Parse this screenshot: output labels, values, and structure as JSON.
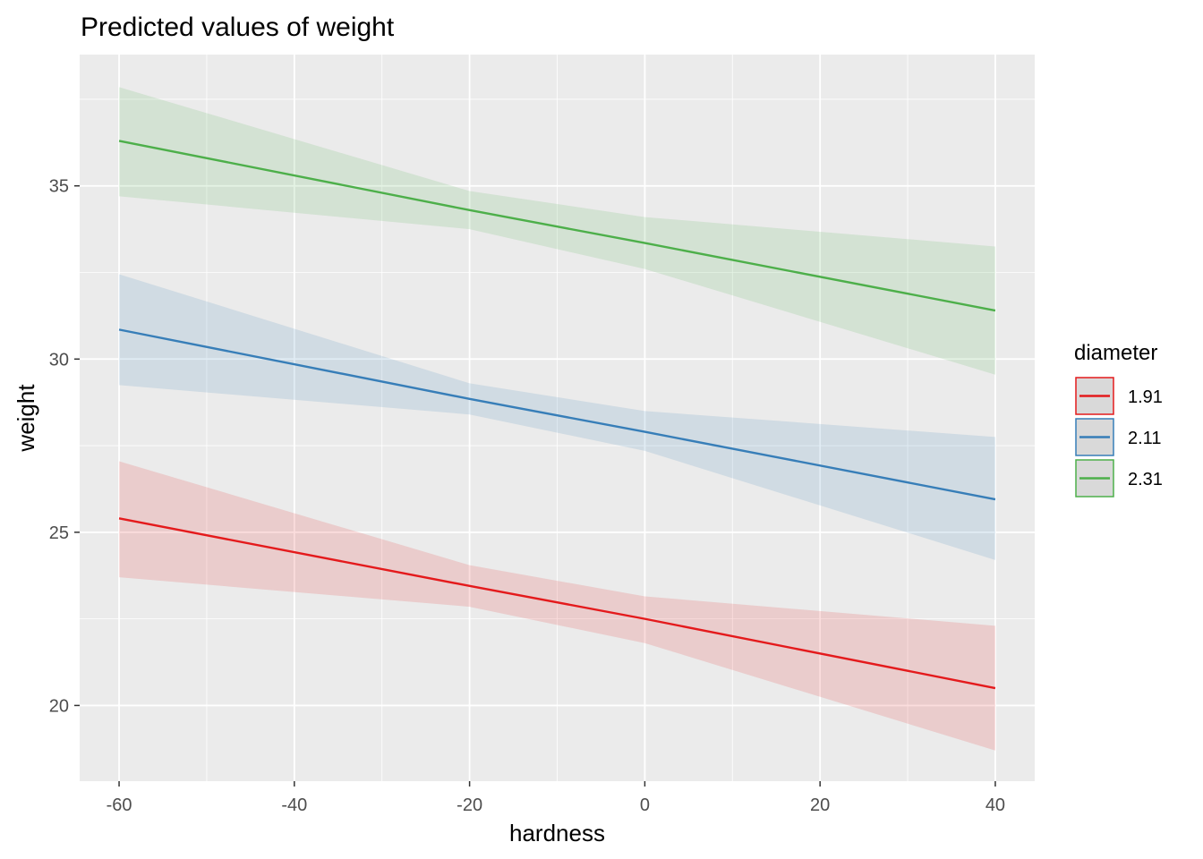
{
  "chart_data": {
    "type": "line",
    "title": "Predicted values of weight",
    "xlabel": "hardness",
    "ylabel": "weight",
    "xlim": [
      -64.5,
      44.5
    ],
    "ylim": [
      17.815,
      38.79
    ],
    "x_ticks": [
      -60,
      -40,
      -20,
      0,
      20,
      40
    ],
    "y_ticks": [
      20,
      25,
      30,
      35
    ],
    "grid": true,
    "background": "#ebebeb",
    "legend": {
      "title": "diameter",
      "position": "right"
    },
    "x": [
      -60,
      -20,
      0,
      40
    ],
    "series": [
      {
        "name": "1.91",
        "color": "#e41a1c",
        "values": [
          25.4,
          23.45,
          22.5,
          20.5
        ],
        "ci_low": [
          23.7,
          22.85,
          21.8,
          18.7
        ],
        "ci_high": [
          27.05,
          24.05,
          23.15,
          22.3
        ]
      },
      {
        "name": "2.11",
        "color": "#377eb8",
        "values": [
          30.85,
          28.85,
          27.9,
          25.95
        ],
        "ci_low": [
          29.25,
          28.4,
          27.35,
          24.2
        ],
        "ci_high": [
          32.45,
          29.3,
          28.5,
          27.75
        ]
      },
      {
        "name": "2.31",
        "color": "#4daf4a",
        "values": [
          36.3,
          34.3,
          33.35,
          31.4
        ],
        "ci_low": [
          34.7,
          33.75,
          32.6,
          29.55
        ],
        "ci_high": [
          37.85,
          34.85,
          34.1,
          33.25
        ]
      }
    ]
  }
}
